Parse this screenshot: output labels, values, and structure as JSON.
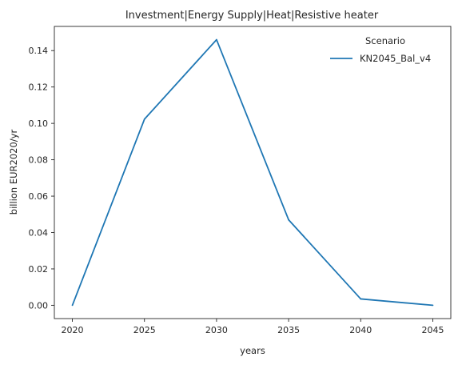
{
  "chart_data": {
    "type": "line",
    "title": "Investment|Energy Supply|Heat|Resistive heater",
    "xlabel": "years",
    "ylabel": "billion EUR2020/yr",
    "x": [
      2020,
      2025,
      2030,
      2035,
      2040,
      2045
    ],
    "xticks": [
      "2020",
      "2025",
      "2030",
      "2035",
      "2040",
      "2045"
    ],
    "xlim": [
      2018.75,
      2046.25
    ],
    "yticks": [
      "0.00",
      "0.02",
      "0.04",
      "0.06",
      "0.08",
      "0.10",
      "0.12",
      "0.14"
    ],
    "ytick_values": [
      0,
      0.02,
      0.04,
      0.06,
      0.08,
      0.1,
      0.12,
      0.14
    ],
    "ylim": [
      -0.0073,
      0.1533
    ],
    "grid": false,
    "legend": {
      "title": "Scenario",
      "placement": "top-right"
    },
    "series": [
      {
        "name": "KN2045_Bal_v4",
        "color": "#1f77b4",
        "values": [
          0.0,
          0.1023,
          0.146,
          0.047,
          0.0035,
          0.0
        ]
      }
    ]
  }
}
